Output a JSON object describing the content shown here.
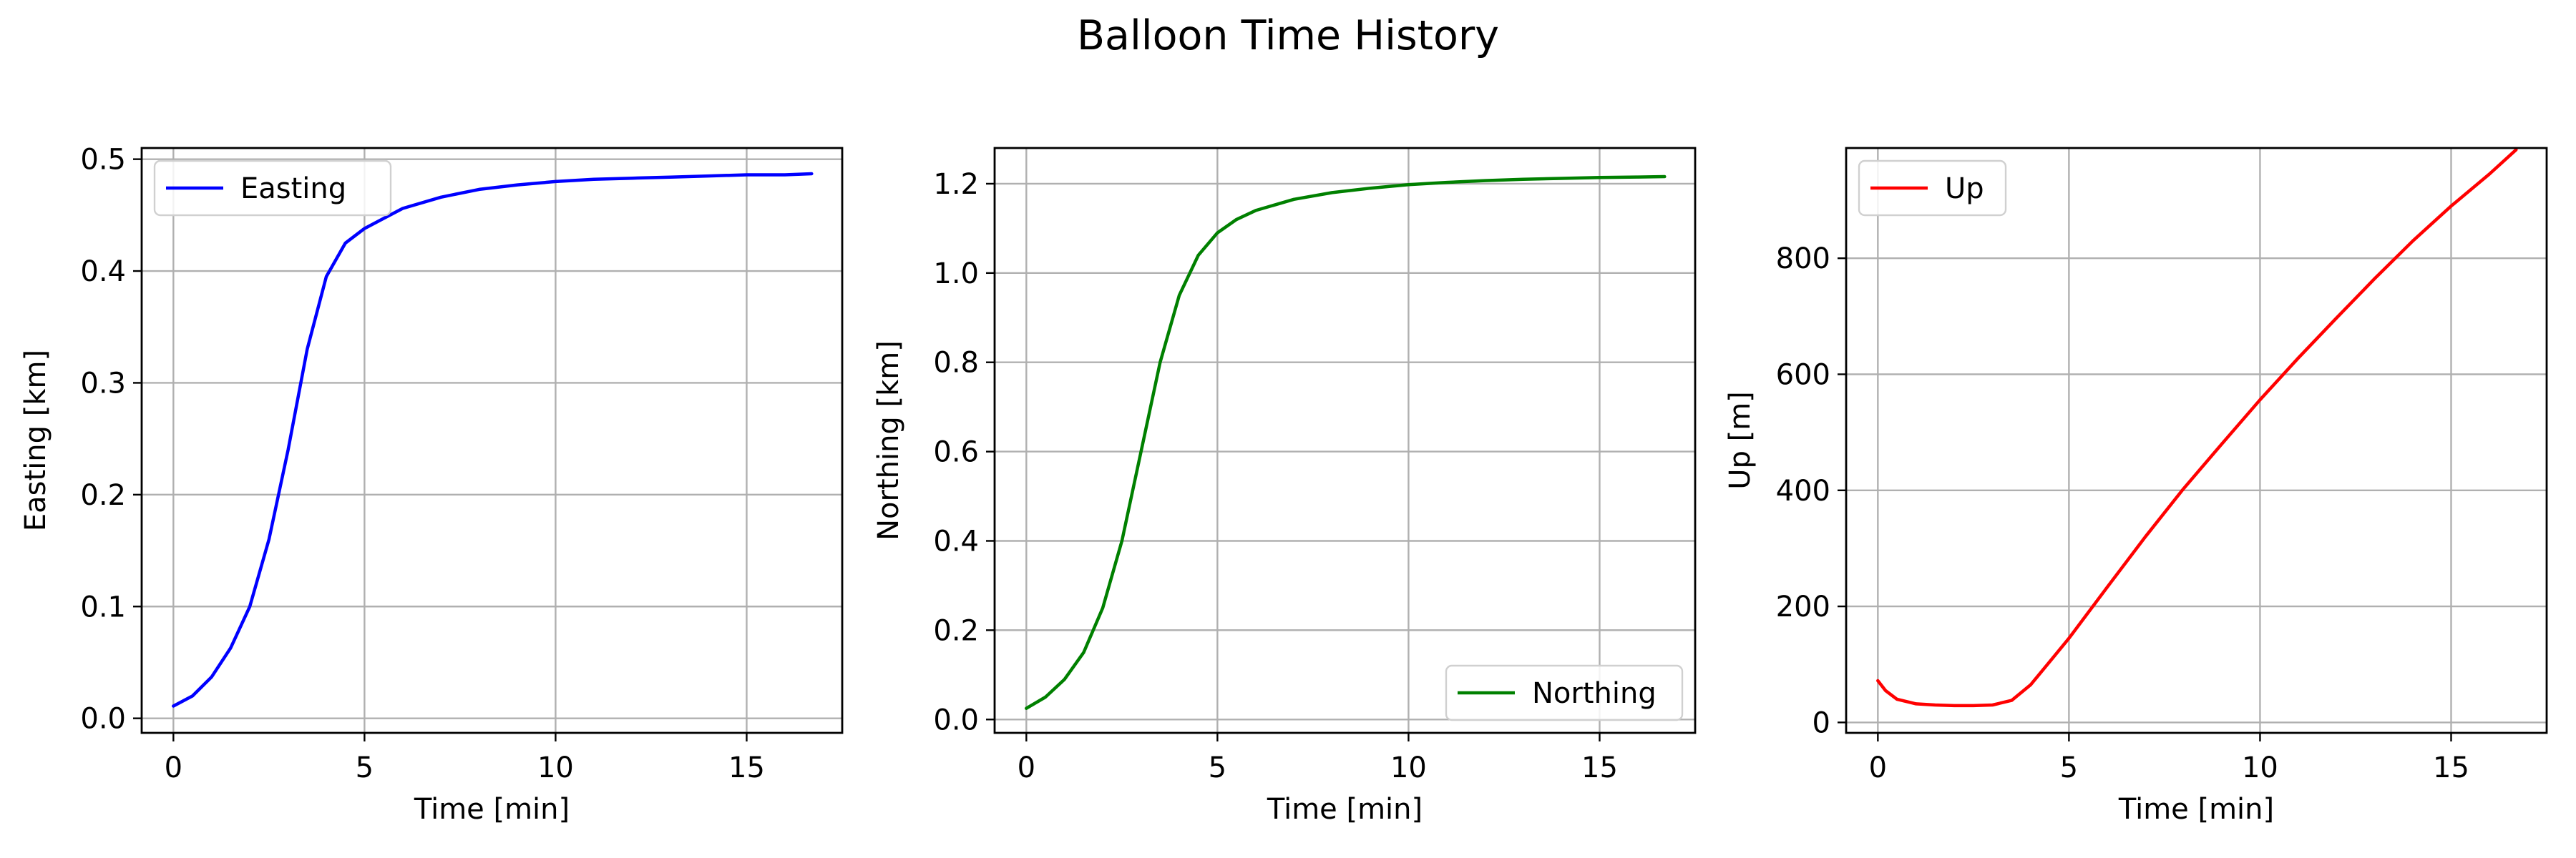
{
  "figure": {
    "title": "Balloon Time History"
  },
  "chart_data": [
    {
      "type": "line",
      "xlabel": "Time [min]",
      "ylabel": "Easting [km]",
      "xlim": [
        -0.83,
        17.5
      ],
      "ylim": [
        -0.013,
        0.51
      ],
      "xticks": [
        0,
        5,
        10,
        15
      ],
      "yticks": [
        0.0,
        0.1,
        0.2,
        0.3,
        0.4,
        0.5
      ],
      "ytick_labels": [
        "0.0",
        "0.1",
        "0.2",
        "0.3",
        "0.4",
        "0.5"
      ],
      "grid": true,
      "legend_position": "upper-left",
      "series": [
        {
          "name": "Easting",
          "color": "#0000ff",
          "x": [
            0,
            0.5,
            1,
            1.5,
            2,
            2.5,
            3,
            3.5,
            4,
            4.5,
            5,
            5.5,
            6,
            7,
            8,
            9,
            10,
            11,
            12,
            13,
            14,
            15,
            16,
            16.7
          ],
          "y": [
            0.011,
            0.02,
            0.037,
            0.063,
            0.1,
            0.16,
            0.24,
            0.33,
            0.395,
            0.425,
            0.438,
            0.447,
            0.456,
            0.466,
            0.473,
            0.477,
            0.48,
            0.482,
            0.483,
            0.484,
            0.485,
            0.486,
            0.486,
            0.487
          ]
        }
      ]
    },
    {
      "type": "line",
      "xlabel": "Time [min]",
      "ylabel": "Northing [km]",
      "xlim": [
        -0.83,
        17.5
      ],
      "ylim": [
        -0.03,
        1.28
      ],
      "xticks": [
        0,
        5,
        10,
        15
      ],
      "yticks": [
        0.0,
        0.2,
        0.4,
        0.6,
        0.8,
        1.0,
        1.2
      ],
      "ytick_labels": [
        "0.0",
        "0.2",
        "0.4",
        "0.6",
        "0.8",
        "1.0",
        "1.2"
      ],
      "grid": true,
      "legend_position": "lower-right",
      "series": [
        {
          "name": "Northing",
          "color": "#008000",
          "x": [
            0,
            0.5,
            1,
            1.5,
            2,
            2.5,
            3,
            3.5,
            4,
            4.5,
            5,
            5.5,
            6,
            7,
            8,
            9,
            10,
            11,
            12,
            13,
            14,
            15,
            16,
            16.7
          ],
          "y": [
            0.025,
            0.05,
            0.09,
            0.15,
            0.25,
            0.4,
            0.6,
            0.8,
            0.95,
            1.04,
            1.09,
            1.12,
            1.14,
            1.165,
            1.18,
            1.19,
            1.198,
            1.203,
            1.207,
            1.21,
            1.212,
            1.214,
            1.215,
            1.216
          ]
        }
      ]
    },
    {
      "type": "line",
      "xlabel": "Time [min]",
      "ylabel": "Up [m]",
      "xlim": [
        -0.83,
        17.5
      ],
      "ylim": [
        -18,
        990
      ],
      "xticks": [
        0,
        5,
        10,
        15
      ],
      "yticks": [
        0,
        200,
        400,
        600,
        800
      ],
      "ytick_labels": [
        "0",
        "200",
        "400",
        "600",
        "800"
      ],
      "grid": true,
      "legend_position": "upper-left",
      "series": [
        {
          "name": "Up",
          "color": "#ff0000",
          "x": [
            0,
            0.2,
            0.5,
            1,
            1.5,
            2,
            2.5,
            3,
            3.5,
            4,
            4.5,
            5,
            6,
            7,
            8,
            9,
            10,
            11,
            12,
            13,
            14,
            15,
            16,
            16.7
          ],
          "y": [
            72,
            55,
            40,
            32,
            30,
            29,
            29,
            30,
            38,
            65,
            105,
            145,
            233,
            320,
            403,
            480,
            556,
            628,
            697,
            765,
            830,
            890,
            945,
            987
          ]
        }
      ]
    }
  ]
}
